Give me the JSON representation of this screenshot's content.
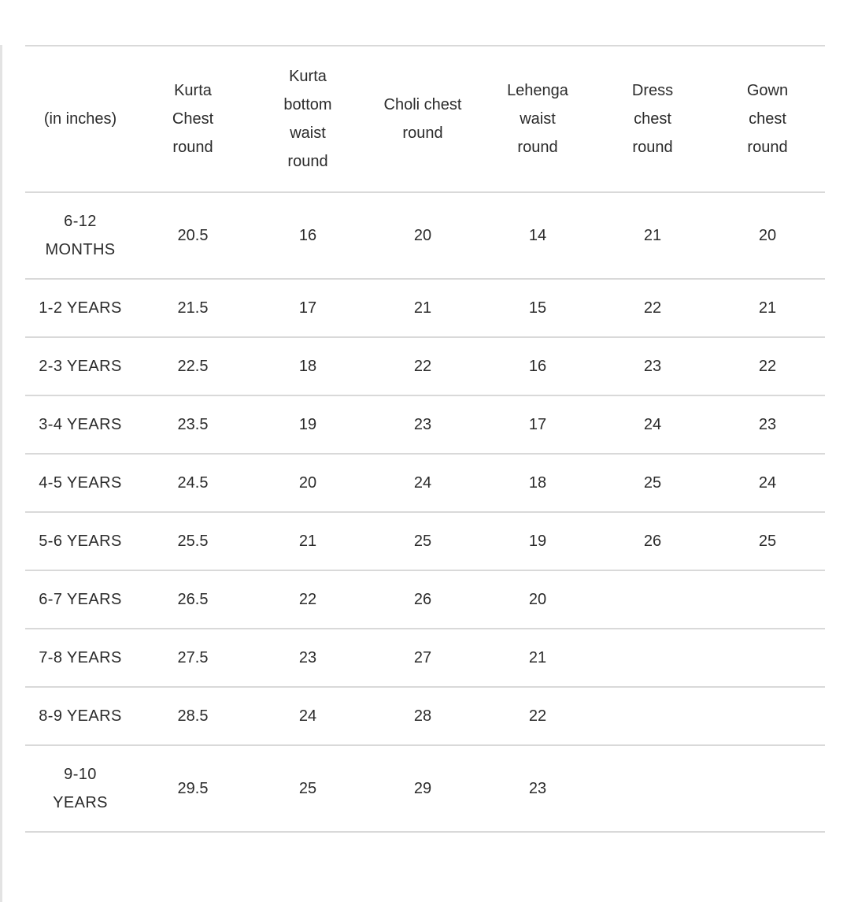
{
  "page": {
    "background_color": "#ffffff",
    "text_color": "#2b2b2b",
    "grid_line_color": "#d9d9d9",
    "left_edge_border_color": "#e3e3e3"
  },
  "chart_data": {
    "type": "table",
    "title": "",
    "unit": "(in inches)",
    "columns": [
      "Kurta Chest round",
      "Kurta bottom waist round",
      "Choli chest round",
      "Lehenga waist round",
      "Dress chest round",
      "Gown chest round"
    ],
    "rows": [
      {
        "age": "6-12 MONTHS",
        "values": [
          "20.5",
          "16",
          "20",
          "14",
          "21",
          "20"
        ]
      },
      {
        "age": "1-2 YEARS",
        "values": [
          "21.5",
          "17",
          "21",
          "15",
          "22",
          "21"
        ]
      },
      {
        "age": "2-3 YEARS",
        "values": [
          "22.5",
          "18",
          "22",
          "16",
          "23",
          "22"
        ]
      },
      {
        "age": "3-4 YEARS",
        "values": [
          "23.5",
          "19",
          "23",
          "17",
          "24",
          "23"
        ]
      },
      {
        "age": "4-5 YEARS",
        "values": [
          "24.5",
          "20",
          "24",
          "18",
          "25",
          "24"
        ]
      },
      {
        "age": "5-6 YEARS",
        "values": [
          "25.5",
          "21",
          "25",
          "19",
          "26",
          "25"
        ]
      },
      {
        "age": "6-7 YEARS",
        "values": [
          "26.5",
          "22",
          "26",
          "20",
          "",
          ""
        ]
      },
      {
        "age": "7-8 YEARS",
        "values": [
          "27.5",
          "23",
          "27",
          "21",
          "",
          ""
        ]
      },
      {
        "age": "8-9 YEARS",
        "values": [
          "28.5",
          "24",
          "28",
          "22",
          "",
          ""
        ]
      },
      {
        "age": "9-10 YEARS",
        "values": [
          "29.5",
          "25",
          "29",
          "23",
          "",
          ""
        ]
      }
    ]
  }
}
